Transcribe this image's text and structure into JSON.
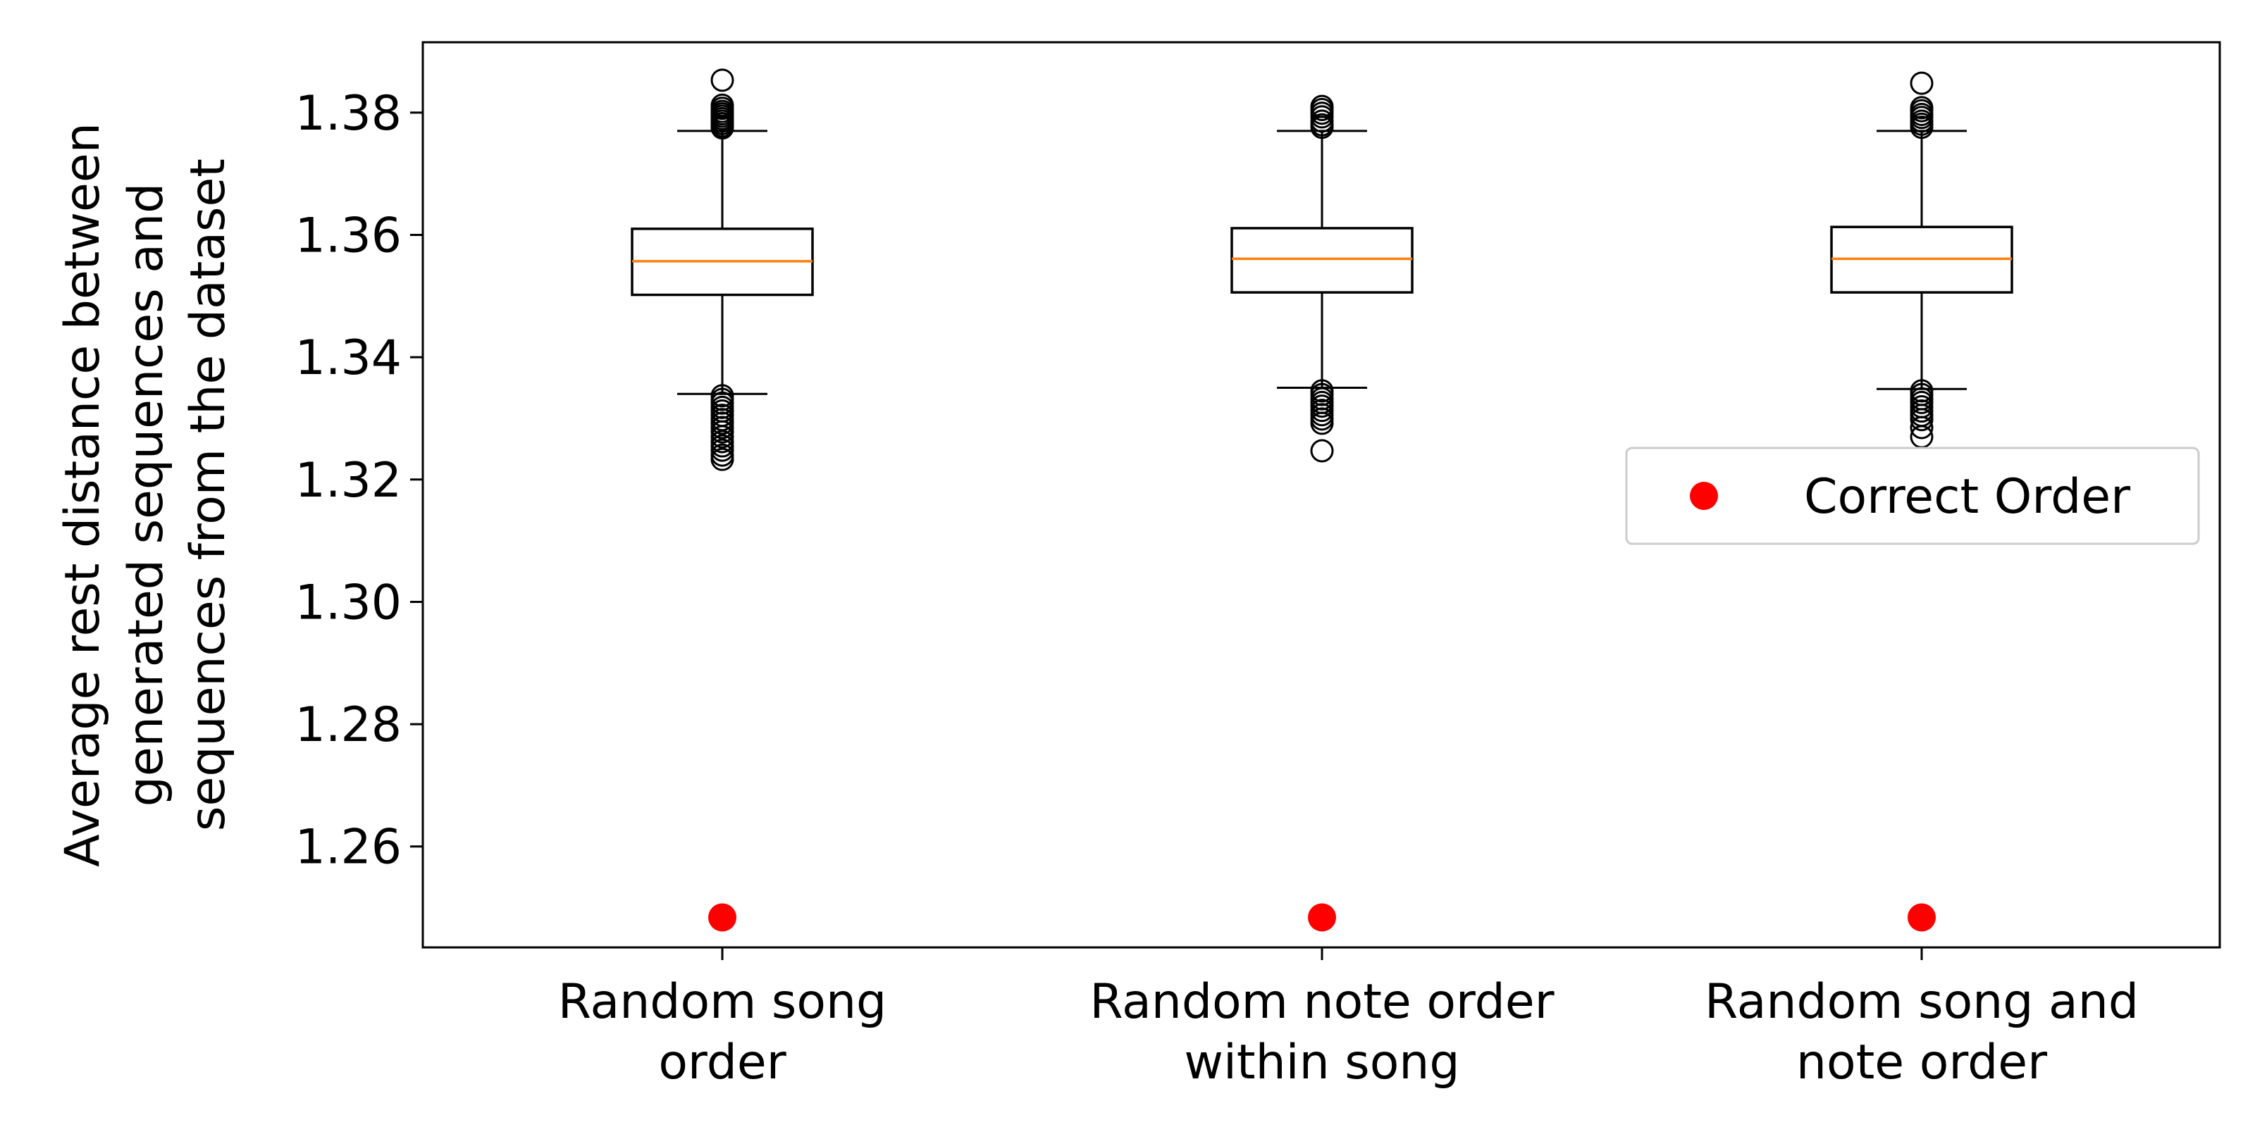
{
  "chart_data": {
    "type": "box",
    "ylabel_lines": [
      "Average rest distance between",
      "generated sequences and",
      "sequences from the dataset"
    ],
    "xlabel": "",
    "ylim": [
      1.2435,
      1.3915
    ],
    "yticks": [
      1.26,
      1.28,
      1.3,
      1.32,
      1.34,
      1.36,
      1.38
    ],
    "ytick_labels": [
      "1.26",
      "1.28",
      "1.30",
      "1.32",
      "1.34",
      "1.36",
      "1.38"
    ],
    "categories": [
      {
        "label_lines": [
          "Random song",
          "order"
        ]
      },
      {
        "label_lines": [
          "Random note order",
          "within song"
        ]
      },
      {
        "label_lines": [
          "Random song and",
          "note order"
        ]
      }
    ],
    "boxes": [
      {
        "whisker_low": 1.334,
        "q1": 1.3502,
        "median": 1.3557,
        "q3": 1.361,
        "whisker_high": 1.377,
        "outliers_high": [
          1.3853,
          1.3812,
          1.3807,
          1.3802,
          1.3798,
          1.3794,
          1.379,
          1.3786,
          1.3782,
          1.3778,
          1.3775
        ],
        "outliers_low": [
          1.3337,
          1.3331,
          1.3325,
          1.3318,
          1.3312,
          1.3305,
          1.3298,
          1.3292,
          1.3285,
          1.3278,
          1.327,
          1.3262,
          1.3255,
          1.3248,
          1.324,
          1.3233
        ]
      },
      {
        "whisker_low": 1.335,
        "q1": 1.3506,
        "median": 1.3561,
        "q3": 1.3611,
        "whisker_high": 1.377,
        "outliers_high": [
          1.381,
          1.3805,
          1.3799,
          1.3793,
          1.3786,
          1.378,
          1.3776
        ],
        "outliers_low": [
          1.3345,
          1.3339,
          1.3332,
          1.3326,
          1.332,
          1.3313,
          1.3306,
          1.3299,
          1.3292,
          1.3247
        ]
      },
      {
        "whisker_low": 1.3348,
        "q1": 1.3506,
        "median": 1.3561,
        "q3": 1.3613,
        "whisker_high": 1.377,
        "outliers_high": [
          1.3848,
          1.3808,
          1.3803,
          1.3797,
          1.3792,
          1.3786,
          1.3781,
          1.3776
        ],
        "outliers_low": [
          1.3345,
          1.3339,
          1.3332,
          1.3326,
          1.3319,
          1.3312,
          1.3305,
          1.3298,
          1.3285,
          1.327,
          1.3222
        ]
      }
    ],
    "correct_order_values": [
      1.2484,
      1.2484,
      1.2484
    ],
    "legend": {
      "label": "Correct Order",
      "location": "center right"
    },
    "colors": {
      "box": "#000000",
      "median": "#ff7f0e",
      "correct_order_marker": "#ff0000",
      "legend_border": "#cccccc"
    },
    "grid": false
  }
}
